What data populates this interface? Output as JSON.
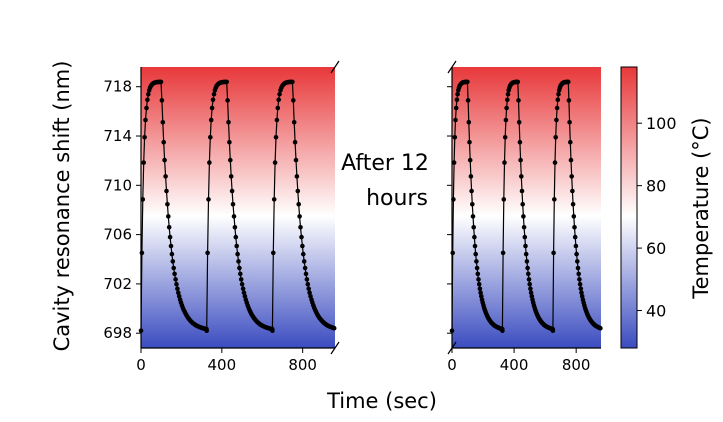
{
  "chart_data": {
    "type": "scatter",
    "xlabel": "Time (sec)",
    "ylabel": "Cavity resonance shift (nm)",
    "colorbar_label": "Temperature (°C)",
    "annotation": "After 12\nhours",
    "ylim": [
      696.8,
      719.6
    ],
    "yticks": [
      698,
      702,
      706,
      710,
      714,
      718
    ],
    "colorbar": {
      "range": [
        28,
        118
      ],
      "ticks": [
        40,
        60,
        80,
        100
      ],
      "colormap": [
        "#3b4cc0",
        "#ffffff",
        "#e8383a"
      ]
    },
    "marker_color": "#000000",
    "panels": [
      {
        "name": "left",
        "xlim": [
          0,
          960
        ],
        "xticks": [
          0,
          400,
          800
        ],
        "cycles": [
          {
            "start": 0,
            "fall": 100,
            "end": 325
          },
          {
            "start": 325,
            "fall": 425,
            "end": 650
          },
          {
            "start": 650,
            "fall": 750,
            "end": 960
          }
        ]
      },
      {
        "name": "right",
        "xlim": [
          0,
          960
        ],
        "xticks": [
          0,
          400,
          800
        ],
        "cycles": [
          {
            "start": 0,
            "fall": 100,
            "end": 325
          },
          {
            "start": 325,
            "fall": 425,
            "end": 650
          },
          {
            "start": 650,
            "fall": 750,
            "end": 960
          }
        ]
      }
    ],
    "wavelength_range": [
      698.2,
      718.4
    ],
    "rise_time_constant": 12,
    "fall_time_constant": 45,
    "sample_interval": 4.5
  }
}
